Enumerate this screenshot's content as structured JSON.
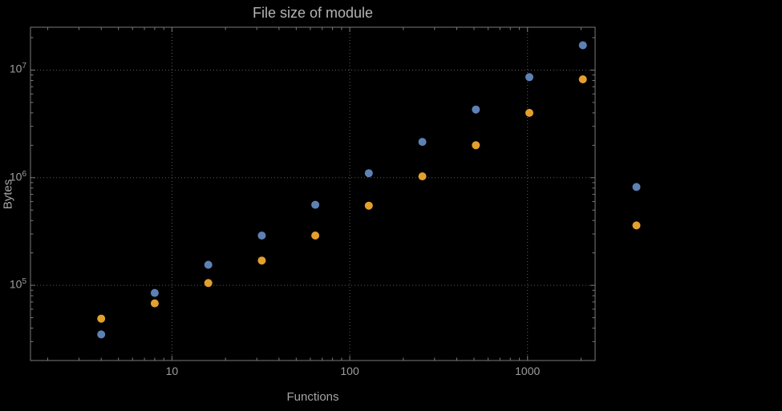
{
  "colors": {
    "background": "#000000",
    "frame": "#7a7a7a",
    "grid": "#5c5c5c",
    "text": "#9e9e9e",
    "title_text": "#b4b4b4",
    "series1": "#5e81b5",
    "series2": "#e3a02d"
  },
  "chart_data": {
    "type": "scatter",
    "title": "File size of module",
    "xlabel": "Functions",
    "ylabel": "Bytes",
    "xscale": "log",
    "yscale": "log",
    "grid": "dotted",
    "legend": "none",
    "xlim": [
      1.6,
      2400
    ],
    "ylim": [
      20000,
      25000000
    ],
    "xticks": [
      10,
      100,
      1000
    ],
    "yticks": [
      100000,
      1000000,
      10000000
    ],
    "series": [
      {
        "name": "series-1-blue",
        "color": "#5e81b5",
        "points": [
          [
            4,
            35000
          ],
          [
            8,
            85000
          ],
          [
            16,
            155000
          ],
          [
            32,
            290000
          ],
          [
            64,
            560000
          ],
          [
            128,
            1100000
          ],
          [
            256,
            2150000
          ],
          [
            512,
            4300000
          ],
          [
            1024,
            8600000
          ],
          [
            2048,
            17000000
          ],
          [
            4096,
            820000
          ]
        ]
      },
      {
        "name": "series-2-orange",
        "color": "#e3a02d",
        "points": [
          [
            4,
            49000
          ],
          [
            8,
            68000
          ],
          [
            16,
            105000
          ],
          [
            32,
            170000
          ],
          [
            64,
            290000
          ],
          [
            128,
            550000
          ],
          [
            256,
            1030000
          ],
          [
            512,
            2000000
          ],
          [
            1024,
            4000000
          ],
          [
            2048,
            8200000
          ],
          [
            4096,
            360000
          ]
        ]
      }
    ]
  }
}
